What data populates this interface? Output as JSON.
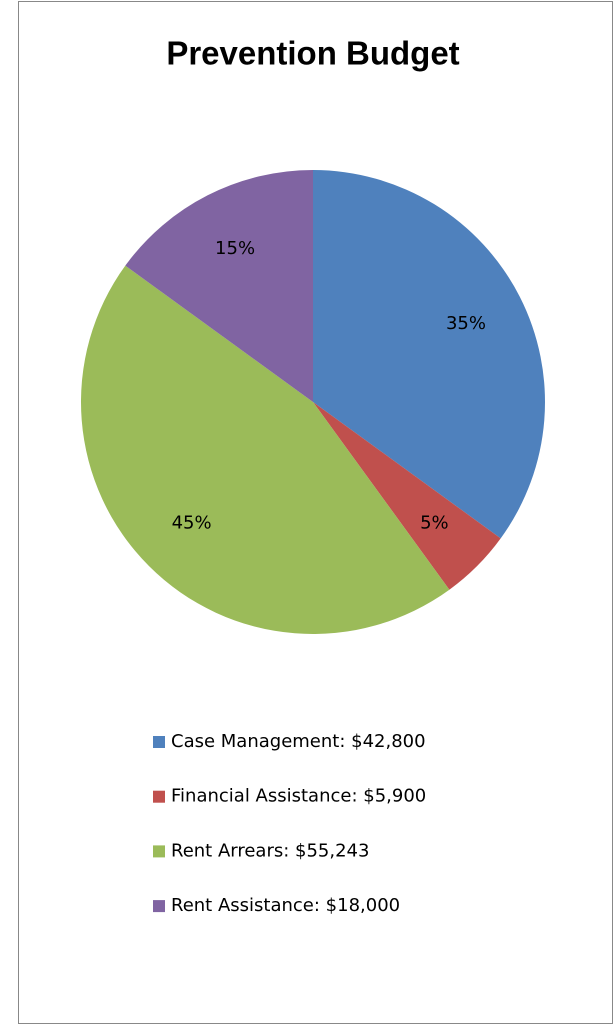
{
  "chart_data": {
    "type": "pie",
    "title": "Prevention Budget",
    "categories": [
      "Case Management: $42,800",
      "Financial Assistance: $5,900",
      "Rent Arrears: $55,243",
      "Rent Assistance: $18,000"
    ],
    "values": [
      35,
      5,
      45,
      15
    ],
    "value_labels": [
      "35%",
      "5%",
      "45%",
      "15%"
    ],
    "colors": [
      "#4f81bd",
      "#c0504d",
      "#9bbb59",
      "#8064a2"
    ]
  }
}
